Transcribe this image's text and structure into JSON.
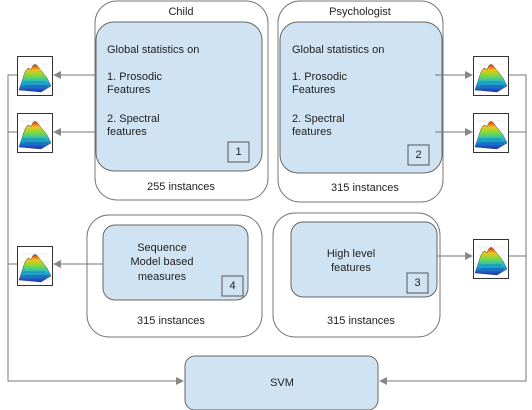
{
  "boxes": [
    {
      "title": "Child",
      "lines": [
        "Global statistics on",
        "1. Prosodic",
        "Features",
        "2. Spectral",
        "features"
      ],
      "number": "1",
      "instances": "255 instances"
    },
    {
      "title": "Psychologist",
      "lines": [
        "Global statistics on",
        "1. Prosodic",
        "Features",
        "2. Spectral",
        "features"
      ],
      "number": "2",
      "instances": "315 instances"
    },
    {
      "lines": [
        "High level",
        "features"
      ],
      "number": "3",
      "instances": "315 instances"
    },
    {
      "lines": [
        "Sequence",
        "Model based",
        "measures"
      ],
      "number": "4",
      "instances": "315 instances"
    }
  ],
  "classifier": "SVM"
}
